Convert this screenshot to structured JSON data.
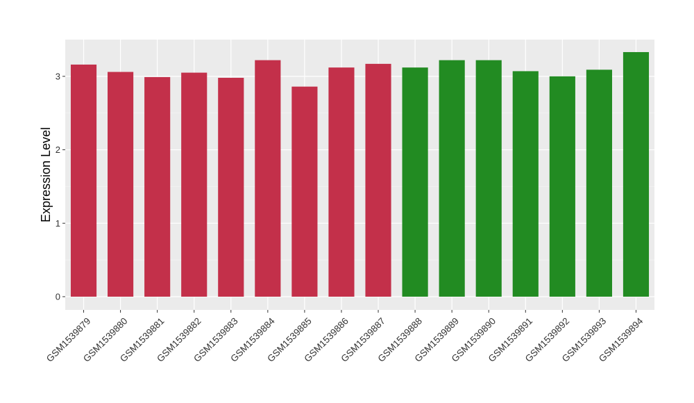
{
  "chart_data": {
    "type": "bar",
    "title": "",
    "xlabel": "",
    "ylabel": "Expression Level",
    "ylim": [
      -0.18,
      3.5
    ],
    "yticks": [
      0,
      1,
      2,
      3
    ],
    "grid": true,
    "panel_background": "#ebebeb",
    "categories": [
      "GSM1539879",
      "GSM1539880",
      "GSM1539881",
      "GSM1539882",
      "GSM1539883",
      "GSM1539884",
      "GSM1539885",
      "GSM1539886",
      "GSM1539887",
      "GSM1539888",
      "GSM1539889",
      "GSM1539890",
      "GSM1539891",
      "GSM1539892",
      "GSM1539893",
      "GSM1539894"
    ],
    "values": [
      3.16,
      3.06,
      2.99,
      3.05,
      2.98,
      3.22,
      2.86,
      3.12,
      3.17,
      3.12,
      3.22,
      3.22,
      3.07,
      3.0,
      3.09,
      3.33
    ],
    "colors": [
      "#c3304a",
      "#c3304a",
      "#c3304a",
      "#c3304a",
      "#c3304a",
      "#c3304a",
      "#c3304a",
      "#c3304a",
      "#c3304a",
      "#228b22",
      "#228b22",
      "#228b22",
      "#228b22",
      "#228b22",
      "#228b22",
      "#228b22"
    ]
  }
}
